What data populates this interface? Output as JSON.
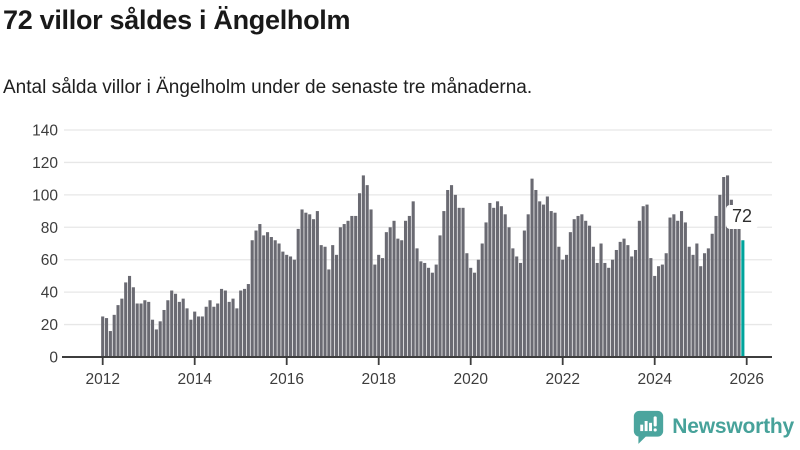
{
  "header": {
    "title": "72 villor såldes i Ängelholm",
    "subtitle": "Antal sålda villor i Ängelholm under de senaste tre månaderna."
  },
  "annotation": {
    "label": "72"
  },
  "logo": {
    "text": "Newsworthy",
    "color": "#47a29a"
  },
  "colors": {
    "bar": "#6a6a72",
    "highlight": "#00a49c",
    "grid": "#e7e7e7",
    "axis": "#3d3d3d",
    "tick_label": "#3d3d3d"
  },
  "chart_data": {
    "type": "bar",
    "title": "72 villor såldes i Ängelholm",
    "subtitle": "Antal sålda villor i Ängelholm under de senaste tre månaderna.",
    "unit": "villor per månad (rullande tre månader)",
    "frequency": "monthly",
    "x_start": "2012-01",
    "x_end": "2025-12",
    "x_tick_labels": [
      "2012",
      "2014",
      "2016",
      "2018",
      "2020",
      "2022",
      "2024",
      "2026"
    ],
    "y_ticks": [
      0,
      20,
      40,
      60,
      80,
      100,
      120,
      140
    ],
    "ylim": [
      0,
      140
    ],
    "grid": true,
    "legend": "none",
    "highlight_last_bar": true,
    "highlight_value_label": "72",
    "values": [
      25,
      24,
      16,
      26,
      32,
      36,
      46,
      50,
      43,
      33,
      33,
      35,
      34,
      23,
      17,
      22,
      29,
      35,
      41,
      39,
      34,
      36,
      30,
      23,
      28,
      25,
      25,
      31,
      35,
      31,
      33,
      42,
      41,
      34,
      36,
      30,
      41,
      42,
      45,
      72,
      78,
      82,
      75,
      77,
      74,
      72,
      70,
      65,
      63,
      62,
      60,
      79,
      91,
      89,
      88,
      85,
      90,
      69,
      68,
      54,
      69,
      63,
      80,
      82,
      84,
      87,
      87,
      101,
      112,
      106,
      91,
      57,
      63,
      61,
      77,
      80,
      84,
      73,
      72,
      84,
      87,
      96,
      67,
      59,
      58,
      55,
      52,
      57,
      75,
      90,
      103,
      106,
      100,
      92,
      92,
      64,
      55,
      52,
      60,
      70,
      83,
      95,
      92,
      96,
      93,
      88,
      80,
      67,
      62,
      58,
      78,
      88,
      110,
      103,
      96,
      94,
      99,
      90,
      89,
      68,
      60,
      63,
      77,
      85,
      87,
      88,
      84,
      81,
      68,
      58,
      70,
      58,
      55,
      60,
      66,
      71,
      73,
      69,
      62,
      66,
      84,
      93,
      94,
      61,
      50,
      56,
      57,
      64,
      86,
      88,
      84,
      90,
      83,
      68,
      63,
      70,
      56,
      64,
      67,
      76,
      87,
      100,
      111,
      112,
      97,
      92,
      85,
      72
    ]
  }
}
